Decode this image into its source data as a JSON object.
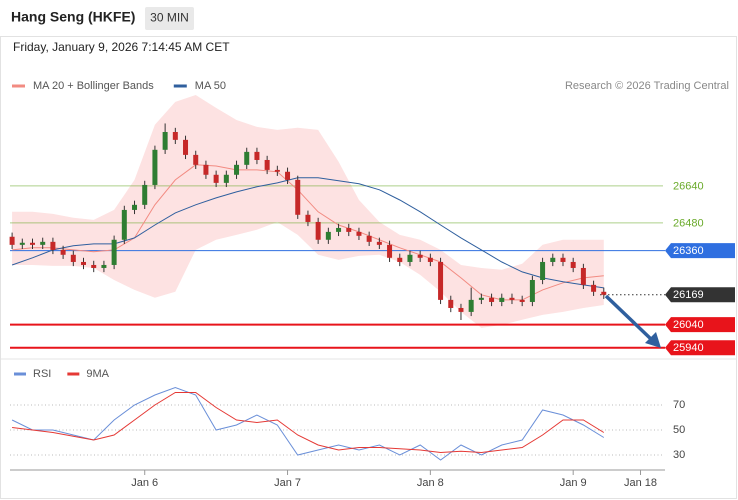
{
  "header": {
    "title": "Hang Seng (HKFE)",
    "interval": "30 MIN",
    "timestamp": "Friday, January 9, 2026 7:14:45 AM CET"
  },
  "chart_data": [
    {
      "type": "candlestick",
      "credit": "Research © 2026 Trading Central",
      "x": [
        0,
        1,
        2,
        3,
        4,
        5,
        6,
        7,
        8,
        9,
        10,
        11,
        12,
        13,
        14,
        15,
        16,
        17,
        18,
        19,
        20,
        21,
        22,
        23,
        24,
        25,
        26,
        27,
        28,
        29,
        30,
        31,
        32,
        33,
        34,
        35,
        36,
        37,
        38,
        39,
        40,
        41,
        42,
        43,
        44,
        45,
        46,
        47,
        48,
        49,
        50,
        51,
        52,
        53,
        54,
        55,
        56,
        57,
        58
      ],
      "open": [
        26420,
        26385,
        26394,
        26385,
        26398,
        26363,
        26342,
        26311,
        26298,
        26285,
        26298,
        26407,
        26536,
        26558,
        26644,
        26796,
        26873,
        26839,
        26774,
        26731,
        26688,
        26653,
        26688,
        26731,
        26787,
        26752,
        26709,
        26701,
        26666,
        26515,
        26484,
        26407,
        26441,
        26458,
        26441,
        26424,
        26398,
        26385,
        26329,
        26311,
        26342,
        26329,
        26311,
        26147,
        26112,
        26095,
        26147,
        26156,
        26138,
        26156,
        26147,
        26138,
        26233,
        26311,
        26329,
        26311,
        26285,
        26212,
        26182
      ],
      "high": [
        26438,
        26412,
        26412,
        26416,
        26416,
        26381,
        26360,
        26329,
        26316,
        26316,
        26425,
        26554,
        26576,
        26662,
        26814,
        26910,
        26891,
        26857,
        26792,
        26749,
        26706,
        26706,
        26749,
        26805,
        26805,
        26770,
        26727,
        26719,
        26684,
        26533,
        26502,
        26459,
        26476,
        26476,
        26459,
        26442,
        26416,
        26403,
        26347,
        26360,
        26360,
        26347,
        26329,
        26165,
        26130,
        26200,
        26174,
        26174,
        26174,
        26174,
        26165,
        26251,
        26329,
        26347,
        26347,
        26329,
        26303,
        26230,
        26200
      ],
      "low": [
        26367,
        26367,
        26367,
        26367,
        26345,
        26324,
        26293,
        26280,
        26267,
        26267,
        26280,
        26389,
        26518,
        26540,
        26626,
        26778,
        26821,
        26756,
        26713,
        26670,
        26635,
        26635,
        26670,
        26713,
        26734,
        26691,
        26683,
        26648,
        26497,
        26466,
        26389,
        26389,
        26423,
        26423,
        26406,
        26380,
        26367,
        26311,
        26293,
        26293,
        26311,
        26293,
        26129,
        26094,
        26060,
        26077,
        26129,
        26120,
        26120,
        26129,
        26120,
        26120,
        26215,
        26293,
        26293,
        26267,
        26194,
        26164,
        26151
      ],
      "close": [
        26385,
        26394,
        26385,
        26398,
        26363,
        26342,
        26311,
        26298,
        26285,
        26298,
        26407,
        26536,
        26558,
        26644,
        26796,
        26873,
        26839,
        26774,
        26731,
        26688,
        26653,
        26688,
        26731,
        26787,
        26752,
        26709,
        26701,
        26666,
        26515,
        26484,
        26407,
        26441,
        26458,
        26441,
        26424,
        26398,
        26385,
        26329,
        26311,
        26342,
        26329,
        26311,
        26147,
        26112,
        26095,
        26147,
        26156,
        26138,
        26156,
        26147,
        26138,
        26233,
        26311,
        26329,
        26311,
        26285,
        26212,
        26182,
        26169
      ],
      "up_color": "#2e7d32",
      "down_color": "#c62828",
      "wick_color": "#333333",
      "series": [
        {
          "name": "MA 20 + Bollinger Bands",
          "color": "#f28b82",
          "band_color": "#fde2e2",
          "x": [
            0,
            2,
            4,
            6,
            8,
            10,
            12,
            14,
            16,
            18,
            20,
            22,
            24,
            26,
            28,
            30,
            32,
            34,
            36,
            38,
            40,
            42,
            44,
            46,
            48,
            50,
            52,
            54,
            56,
            58
          ],
          "values": [
            26363,
            26372,
            26372,
            26363,
            26355,
            26363,
            26415,
            26558,
            26666,
            26731,
            26726,
            26709,
            26709,
            26701,
            26623,
            26528,
            26471,
            26441,
            26407,
            26372,
            26342,
            26311,
            26242,
            26169,
            26147,
            26147,
            26190,
            26221,
            26242,
            26251
          ],
          "upper": [
            26528,
            26528,
            26519,
            26502,
            26493,
            26536,
            26666,
            26904,
            27003,
            27033,
            26977,
            26925,
            26895,
            26882,
            26891,
            26882,
            26744,
            26579,
            26484,
            26428,
            26407,
            26363,
            26298,
            26285,
            26277,
            26303,
            26385,
            26407,
            26407,
            26407
          ],
          "lower": [
            26298,
            26298,
            26294,
            26294,
            26285,
            26233,
            26190,
            26156,
            26182,
            26363,
            26407,
            26428,
            26450,
            26484,
            26428,
            26342,
            26320,
            26337,
            26342,
            26311,
            26255,
            26182,
            26095,
            26026,
            26039,
            26061,
            26082,
            26095,
            26112,
            26125
          ]
        },
        {
          "name": "MA 50",
          "color": "#2f5f9e",
          "x": [
            0,
            2,
            4,
            6,
            8,
            10,
            12,
            14,
            16,
            18,
            20,
            22,
            24,
            26,
            28,
            30,
            32,
            34,
            36,
            38,
            40,
            42,
            44,
            46,
            48,
            50,
            52,
            54,
            56,
            58
          ],
          "values": [
            26298,
            26329,
            26363,
            26381,
            26389,
            26389,
            26415,
            26471,
            26523,
            26558,
            26588,
            26614,
            26636,
            26653,
            26675,
            26675,
            26662,
            26649,
            26623,
            26579,
            26528,
            26471,
            26415,
            26363,
            26311,
            26268,
            26242,
            26225,
            26212,
            26199
          ]
        }
      ],
      "levels": [
        {
          "value": 26640,
          "color": "#6aaa2a",
          "tag": false,
          "dotted": false
        },
        {
          "value": 26480,
          "color": "#6aaa2a",
          "tag": false,
          "dotted": false
        },
        {
          "value": 26360,
          "color": "#2f6fe0",
          "tag": true,
          "dotted": false
        },
        {
          "value": 26169,
          "color": "#333333",
          "tag": true,
          "dotted": true
        },
        {
          "value": 26040,
          "color": "#e8141b",
          "tag": true,
          "dotted": false
        },
        {
          "value": 25940,
          "color": "#e8141b",
          "tag": true,
          "dotted": false
        }
      ],
      "xlim": [
        -0.5,
        64
      ],
      "ylim": [
        25900,
        27180
      ]
    },
    {
      "type": "line",
      "series": [
        {
          "name": "RSI",
          "color": "#6a8fd8",
          "x": [
            0,
            2,
            4,
            6,
            8,
            10,
            12,
            14,
            16,
            18,
            20,
            22,
            24,
            26,
            28,
            30,
            32,
            34,
            36,
            38,
            40,
            42,
            44,
            46,
            48,
            50,
            52,
            54,
            56,
            58
          ],
          "values": [
            58,
            50,
            50,
            46,
            42,
            58,
            70,
            78,
            84,
            78,
            50,
            54,
            62,
            54,
            30,
            34,
            38,
            34,
            38,
            30,
            38,
            26,
            38,
            30,
            38,
            42,
            66,
            62,
            54,
            44
          ]
        },
        {
          "name": "9MA",
          "color": "#e53935",
          "x": [
            0,
            2,
            4,
            6,
            8,
            10,
            12,
            14,
            16,
            18,
            20,
            22,
            24,
            26,
            28,
            30,
            32,
            34,
            36,
            38,
            40,
            42,
            44,
            46,
            48,
            50,
            52,
            54,
            56,
            58
          ],
          "values": [
            52,
            50,
            48,
            45,
            42,
            46,
            58,
            70,
            80,
            80,
            68,
            58,
            56,
            58,
            46,
            38,
            34,
            36,
            36,
            35,
            34,
            32,
            33,
            32,
            34,
            36,
            46,
            58,
            58,
            48
          ]
        }
      ],
      "xlim": [
        -0.5,
        64
      ],
      "ylim": [
        18,
        90
      ],
      "yticks": [
        70,
        50,
        30
      ],
      "xticks": [
        {
          "value": 13,
          "label": "Jan 6"
        },
        {
          "value": 27,
          "label": "Jan 7"
        },
        {
          "value": 41,
          "label": "Jan 8"
        },
        {
          "value": 55,
          "label": "Jan 9"
        },
        {
          "value": 61.6,
          "label": "Jan 18"
        }
      ]
    }
  ]
}
